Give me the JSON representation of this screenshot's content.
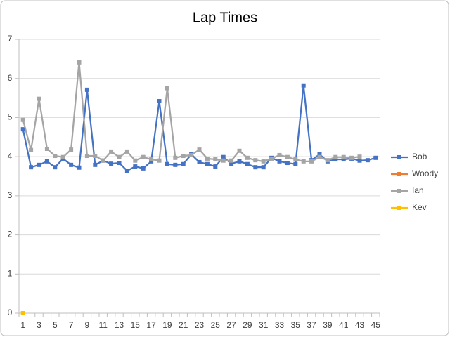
{
  "chart_data": {
    "type": "line",
    "title": "Lap Times",
    "categories": [
      1,
      null,
      3,
      null,
      5,
      null,
      7,
      null,
      9,
      null,
      11,
      null,
      13,
      null,
      15,
      null,
      17,
      null,
      19,
      null,
      21,
      null,
      23,
      null,
      25,
      null,
      27,
      null,
      29,
      null,
      31,
      null,
      33,
      null,
      35,
      null,
      37,
      null,
      39,
      null,
      41,
      null,
      43,
      null,
      45
    ],
    "series": [
      {
        "name": "Bob",
        "color": "#4472c4",
        "values": [
          4.7,
          3.73,
          3.79,
          3.88,
          3.73,
          3.95,
          3.79,
          3.72,
          5.71,
          3.79,
          3.9,
          3.82,
          3.84,
          3.64,
          3.75,
          3.7,
          3.88,
          5.42,
          3.81,
          3.79,
          3.81,
          4.06,
          3.86,
          3.81,
          3.75,
          3.99,
          3.82,
          3.88,
          3.81,
          3.73,
          3.73,
          3.97,
          3.88,
          3.84,
          3.81,
          5.82,
          3.91,
          4.06,
          3.88,
          3.93,
          3.93,
          3.95,
          3.9,
          3.91,
          3.97
        ]
      },
      {
        "name": "Woody",
        "color": "#ed7d31",
        "values": [
          null,
          null,
          null,
          null,
          null,
          null,
          null,
          null,
          null,
          null,
          null,
          null,
          null,
          null,
          null,
          null,
          null,
          null,
          null,
          null,
          null,
          null,
          null,
          null,
          null,
          null,
          null,
          null,
          null,
          null,
          null,
          null,
          null,
          null,
          null,
          null,
          null,
          null,
          null,
          null,
          null,
          null,
          null,
          null,
          null
        ]
      },
      {
        "name": "Ian",
        "color": "#a5a5a5",
        "values": [
          4.94,
          4.17,
          5.48,
          4.2,
          4.02,
          3.99,
          4.18,
          6.41,
          4.02,
          4.02,
          3.9,
          4.13,
          3.99,
          4.13,
          3.9,
          3.99,
          3.93,
          3.9,
          5.75,
          3.97,
          4.02,
          4.04,
          4.18,
          3.95,
          3.93,
          3.9,
          3.9,
          4.15,
          3.97,
          3.91,
          3.88,
          3.95,
          4.04,
          3.99,
          3.93,
          3.88,
          3.88,
          3.99,
          3.91,
          3.99,
          3.99,
          3.97,
          4.0,
          null,
          null
        ]
      },
      {
        "name": "Kev",
        "color": "#ffc000",
        "values": [
          0,
          null,
          null,
          null,
          null,
          null,
          null,
          null,
          null,
          null,
          null,
          null,
          null,
          null,
          null,
          null,
          null,
          null,
          null,
          null,
          null,
          null,
          null,
          null,
          null,
          null,
          null,
          null,
          null,
          null,
          null,
          null,
          null,
          null,
          null,
          null,
          null,
          null,
          null,
          null,
          null,
          null,
          null,
          null,
          null
        ]
      }
    ],
    "ylim": [
      0,
      7
    ],
    "yticks": [
      0,
      1,
      2,
      3,
      4,
      5,
      6,
      7
    ],
    "grid": true,
    "legend": "right"
  }
}
